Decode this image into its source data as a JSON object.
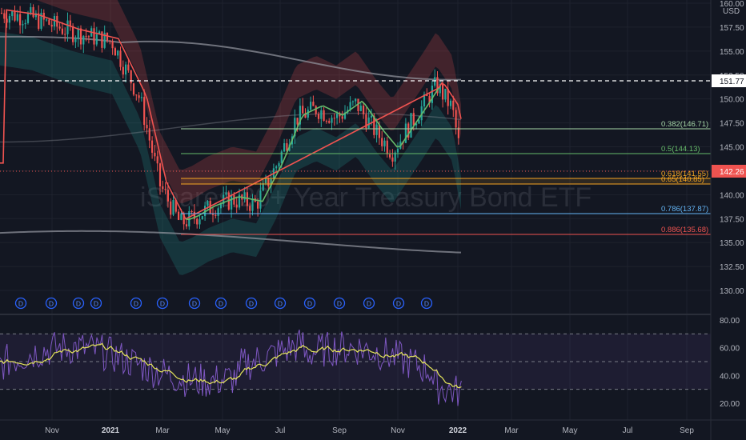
{
  "currency": "USD",
  "watermark": "iShares 20+ Year Treasury Bond ETF",
  "price_axis": {
    "ticks": [
      "160.00",
      "157.50",
      "155.00",
      "152.50",
      "150.00",
      "147.50",
      "145.00",
      "142.50",
      "140.00",
      "137.50",
      "135.00",
      "132.50",
      "130.00"
    ],
    "markers": {
      "dashed_level": "151.77",
      "last_price": "142.26"
    }
  },
  "rsi_axis": {
    "ticks": [
      "80.00",
      "60.00",
      "40.00",
      "20.00"
    ]
  },
  "time_axis": [
    "Nov",
    "2021",
    "Mar",
    "May",
    "Jul",
    "Sep",
    "Nov",
    "2022",
    "Mar",
    "May",
    "Jul",
    "Sep"
  ],
  "dividend_markers": {
    "label": "D",
    "count": 15
  },
  "fib_levels": [
    {
      "label": "0.382(146.71)",
      "color": "#a5d6a7"
    },
    {
      "label": "0.5(144.13)",
      "color": "#66bb6a"
    },
    {
      "label": "0.618(141.55)",
      "color": "#f5a623"
    },
    {
      "label": "0.65(140.85)",
      "color": "#f5a623"
    },
    {
      "label": "0.786(137.87)",
      "color": "#64b5f6"
    },
    {
      "label": "0.886(135.68)",
      "color": "#ef5350"
    }
  ],
  "colors": {
    "background": "#131722",
    "up_candle": "#26a69a",
    "down_candle": "#ef5350",
    "rsi_line": "#7e57c2",
    "rsi_ma": "#e5e55b",
    "last_price_badge": "#ef5350",
    "ma_line": "#f0f3fa"
  }
}
